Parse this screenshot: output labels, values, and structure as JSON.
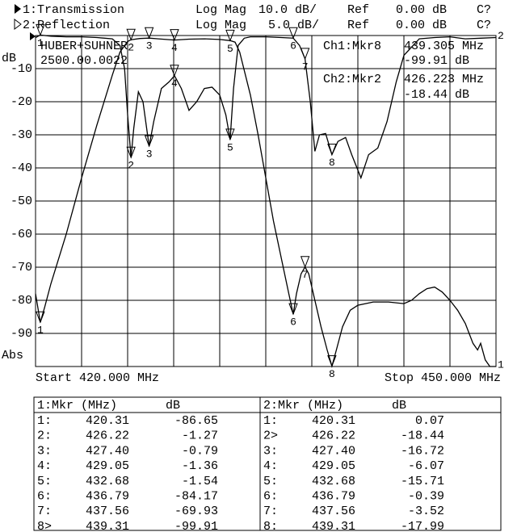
{
  "chart_data": {
    "type": "line",
    "header_rows": [
      [
        "1:Transmission",
        "Log Mag",
        "10.0 dB/",
        "Ref",
        "0.00 dB",
        "C?"
      ],
      [
        "2:Reflection",
        "Log Mag",
        "5.0 dB/",
        "Ref",
        "0.00 dB",
        "C?"
      ]
    ],
    "annotations": [
      "HUBER+SUHNER",
      "2500.00.0022",
      "Ch1:Mkr8",
      "439.305 MHz",
      "-99.91 dB",
      "Ch2:Mkr2",
      "426.223 MHz",
      "-18.44 dB"
    ],
    "ylabel": "dB",
    "ylabel_bottom": "Abs",
    "start_label": "Start 420.000 MHz",
    "stop_label": "Stop 450.000 MHz",
    "xlim": [
      420,
      450
    ],
    "xticks": [
      420,
      423,
      426,
      429,
      432,
      435,
      438,
      441,
      444,
      447,
      450
    ],
    "ylim": [
      -100,
      0
    ],
    "yticks": [
      -90,
      -80,
      -70,
      -60,
      -50,
      -40,
      -30,
      -20,
      -10
    ],
    "y2lim": [
      -50,
      0
    ],
    "grid": true,
    "series": [
      {
        "name": "1:Transmission",
        "end_label": "1",
        "color": "#000000",
        "x": [
          420,
          420.31,
          420.6,
          421,
          422,
          423,
          424,
          425,
          425.5,
          426,
          426.22,
          426.8,
          427.4,
          428,
          429.05,
          430,
          431,
          432,
          432.68,
          433,
          433.3,
          434,
          434.5,
          435,
          435.5,
          436,
          436.5,
          436.79,
          437,
          437.3,
          437.56,
          437.8,
          438.2,
          438.6,
          439,
          439.31,
          439.6,
          440,
          440.5,
          441,
          442,
          443,
          444,
          444.5,
          445,
          445.5,
          446,
          446.5,
          447,
          447.5,
          448,
          448.5,
          448.8,
          449,
          449.3,
          449.6,
          450
        ],
        "values": [
          -78,
          -86.65,
          -82,
          -75,
          -60,
          -43,
          -27,
          -12,
          -5,
          -1.8,
          -1.27,
          -0.9,
          -0.79,
          -1,
          -1.36,
          -1.1,
          -1,
          -1.2,
          -1.54,
          -2,
          -5,
          -18,
          -30,
          -43,
          -56,
          -67,
          -78,
          -84.17,
          -78,
          -72,
          -69.93,
          -72,
          -80,
          -88,
          -95,
          -99.91,
          -95,
          -88,
          -83,
          -81.5,
          -80.5,
          -80.5,
          -81,
          -80,
          -78,
          -76.5,
          -76,
          -77.5,
          -80,
          -83,
          -87,
          -93,
          -95,
          -93,
          -98,
          -100,
          -100
        ],
        "markers": [
          {
            "label": "1",
            "x": 420.31,
            "y": -86.65
          },
          {
            "label": "2",
            "x": 426.22,
            "y": -1.27
          },
          {
            "label": "3",
            "x": 427.4,
            "y": -0.79
          },
          {
            "label": "4",
            "x": 429.05,
            "y": -1.36
          },
          {
            "label": "5",
            "x": 432.68,
            "y": -1.54
          },
          {
            "label": "6",
            "x": 436.79,
            "y": -84.17
          },
          {
            "label": "7",
            "x": 437.56,
            "y": -69.93
          },
          {
            "label": "8",
            "x": 439.31,
            "y": -99.91
          }
        ]
      },
      {
        "name": "2:Reflection",
        "end_label": "2",
        "color": "#000000",
        "axis": "y2",
        "x": [
          420,
          420.31,
          421,
          422,
          423,
          424,
          425,
          425.5,
          425.8,
          426,
          426.22,
          426.4,
          426.7,
          427,
          427.4,
          427.7,
          428.2,
          428.7,
          429.05,
          429.5,
          430,
          430.5,
          431,
          431.5,
          432,
          432.4,
          432.68,
          432.9,
          433.2,
          433.6,
          434,
          435,
          436,
          436.79,
          437.2,
          437.56,
          437.9,
          438.2,
          438.5,
          438.9,
          439.31,
          439.7,
          440.2,
          440.6,
          441.2,
          441.7,
          442.3,
          442.9,
          443.5,
          444,
          445,
          446,
          447,
          448,
          449,
          450
        ],
        "values": [
          -0.3,
          0.07,
          -0.1,
          -0.2,
          -0.2,
          -0.3,
          -0.5,
          -1.5,
          -5,
          -12,
          -18.44,
          -14,
          -8.5,
          -10,
          -16.72,
          -13,
          -8,
          -7,
          -6.07,
          -8,
          -11.3,
          -10,
          -8,
          -7.8,
          -9,
          -12,
          -15.71,
          -8,
          -1.5,
          -0.4,
          -0.2,
          -0.2,
          -0.3,
          -0.39,
          -1.5,
          -3.52,
          -10,
          -17.5,
          -15,
          -14.8,
          -17.99,
          -16,
          -15.4,
          -18,
          -21.5,
          -18,
          -17,
          -13,
          -7,
          -3,
          -0.5,
          -0.3,
          -0.2,
          -0.5,
          -0.4,
          -0.3
        ],
        "markers": [
          {
            "label": "1",
            "x": 420.31,
            "y": 0.07
          },
          {
            "label": "2",
            "x": 426.22,
            "y": -18.44
          },
          {
            "label": "3",
            "x": 427.4,
            "y": -16.72
          },
          {
            "label": "4",
            "x": 429.05,
            "y": -6.07
          },
          {
            "label": "5",
            "x": 432.68,
            "y": -15.71
          },
          {
            "label": "6",
            "x": 436.79,
            "y": -0.39
          },
          {
            "label": "7",
            "x": 437.56,
            "y": -3.52
          },
          {
            "label": "8",
            "x": 439.31,
            "y": -17.99
          }
        ]
      }
    ]
  },
  "marker_tables": [
    {
      "header": [
        "1:Mkr (MHz)",
        "dB"
      ],
      "rows": [
        [
          "1:",
          "420.31",
          "-86.65"
        ],
        [
          "2:",
          "426.22",
          "-1.27"
        ],
        [
          "3:",
          "427.40",
          "-0.79"
        ],
        [
          "4:",
          "429.05",
          "-1.36"
        ],
        [
          "5:",
          "432.68",
          "-1.54"
        ],
        [
          "6:",
          "436.79",
          "-84.17"
        ],
        [
          "7:",
          "437.56",
          "-69.93"
        ],
        [
          "8>",
          "439.31",
          "-99.91"
        ]
      ]
    },
    {
      "header": [
        "2:Mkr (MHz)",
        "dB"
      ],
      "rows": [
        [
          "1:",
          "420.31",
          "0.07"
        ],
        [
          "2>",
          "426.22",
          "-18.44"
        ],
        [
          "3:",
          "427.40",
          "-16.72"
        ],
        [
          "4:",
          "429.05",
          "-6.07"
        ],
        [
          "5:",
          "432.68",
          "-15.71"
        ],
        [
          "6:",
          "436.79",
          "-0.39"
        ],
        [
          "7:",
          "437.56",
          "-3.52"
        ],
        [
          "8:",
          "439.31",
          "-17.99"
        ]
      ]
    }
  ]
}
